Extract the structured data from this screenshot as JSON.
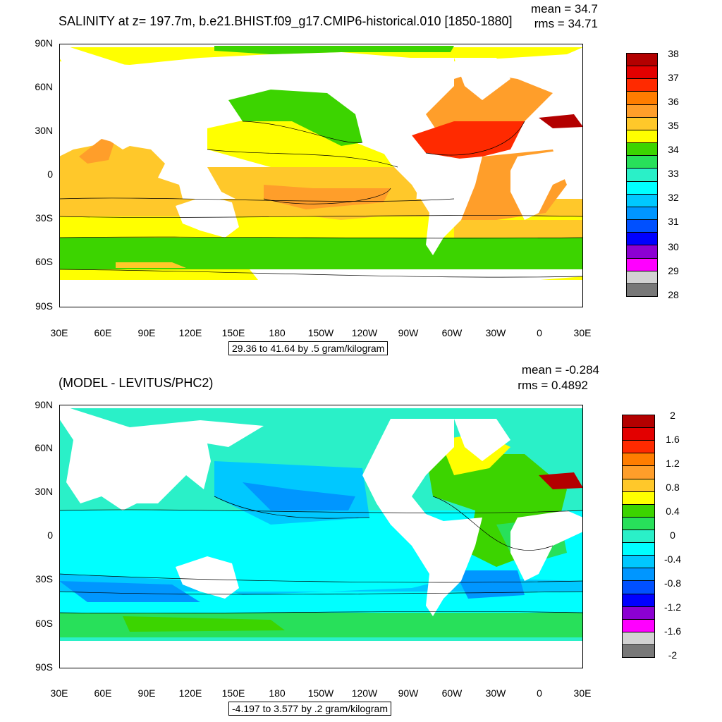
{
  "top_panel": {
    "title": "SALINITY at z= 197.7m, b.e21.BHIST.f09_g17.CMIP6-historical.010 [1850-1880]",
    "mean_text": "mean = 34.7",
    "rms_text": "rms = 34.71",
    "range_text": "29.36 to 41.64 by .5 gram/kilogram",
    "colorbar_labels": [
      "38",
      "37",
      "36",
      "35",
      "34",
      "33",
      "32",
      "31",
      "30",
      "29",
      "28"
    ],
    "colorbar_colors": [
      "#b30000",
      "#e30000",
      "#ff2a00",
      "#ff7d00",
      "#ff9e2a",
      "#ffc82a",
      "#ffff00",
      "#3cd400",
      "#28e05a",
      "#2af0c8",
      "#00ffff",
      "#00c8ff",
      "#0096ff",
      "#0050ff",
      "#0000ff",
      "#8c00d2",
      "#ff00ff",
      "#d2d2d2",
      "#787878"
    ]
  },
  "bottom_panel": {
    "title": "(MODEL - LEVITUS/PHC2)",
    "mean_text": "mean = -0.284",
    "rms_text": "rms = 0.4892",
    "range_text": "-4.197 to 3.577 by .2 gram/kilogram",
    "colorbar_labels": [
      "2",
      "1.6",
      "1.2",
      "0.8",
      "0.4",
      "0",
      "-0.4",
      "-0.8",
      "-1.2",
      "-1.6",
      "-2"
    ],
    "colorbar_colors": [
      "#b30000",
      "#e30000",
      "#ff2a00",
      "#ff7d00",
      "#ff9e2a",
      "#ffc82a",
      "#ffff00",
      "#3cd400",
      "#28e05a",
      "#2af0c8",
      "#00ffff",
      "#00c8ff",
      "#0096ff",
      "#0050ff",
      "#0000ff",
      "#8c00d2",
      "#ff00ff",
      "#d2d2d2",
      "#787878"
    ]
  },
  "axes": {
    "lat_labels": [
      "90N",
      "60N",
      "30N",
      "0",
      "30S",
      "60S",
      "90S"
    ],
    "lon_labels": [
      "30E",
      "60E",
      "90E",
      "120E",
      "150E",
      "180",
      "150W",
      "120W",
      "90W",
      "60W",
      "30W",
      "0",
      "30E"
    ]
  }
}
